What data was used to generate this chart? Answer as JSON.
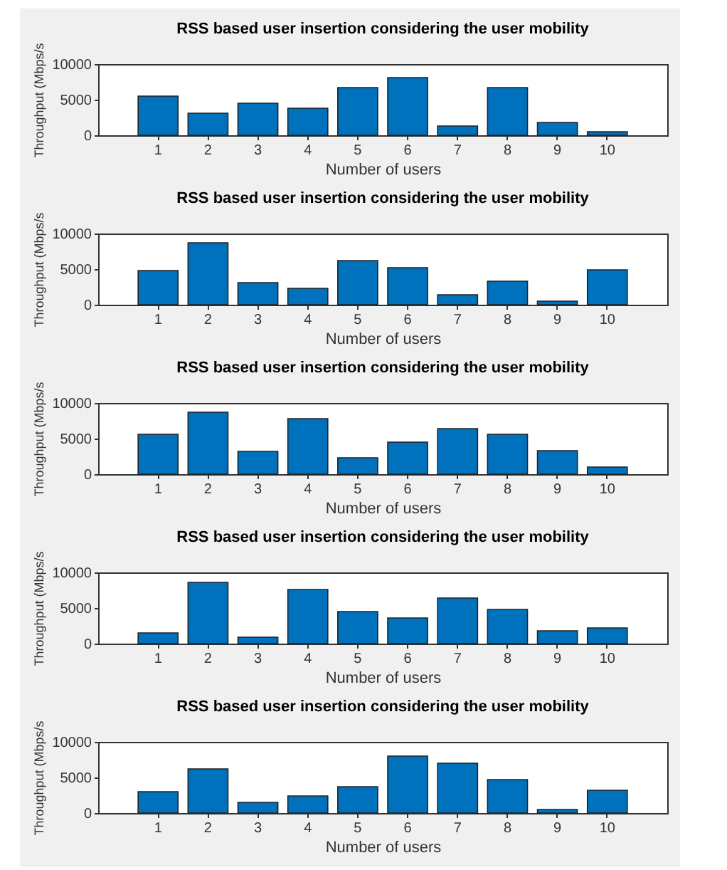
{
  "chart_data": [
    {
      "type": "bar",
      "title": "RSS based user insertion considering the user mobility",
      "xlabel": "Number of users",
      "ylabel": "Throughput (Mbps/s",
      "categories": [
        "1",
        "2",
        "3",
        "4",
        "5",
        "6",
        "7",
        "8",
        "9",
        "10"
      ],
      "values": [
        5500,
        3100,
        4500,
        3800,
        6700,
        8100,
        1300,
        6700,
        1800,
        500
      ],
      "color": "#0072bd",
      "ylim": [
        0,
        10000
      ],
      "yticks": [
        0,
        5000,
        10000
      ],
      "grid": false
    },
    {
      "type": "bar",
      "title": "RSS based user insertion considering the user mobility",
      "xlabel": "Number of users",
      "ylabel": "Throughput (Mbps/s",
      "categories": [
        "1",
        "2",
        "3",
        "4",
        "5",
        "6",
        "7",
        "8",
        "9",
        "10"
      ],
      "values": [
        4800,
        8700,
        3100,
        2300,
        6200,
        5200,
        1400,
        3300,
        500,
        4900
      ],
      "color": "#0072bd",
      "ylim": [
        0,
        10000
      ],
      "yticks": [
        0,
        5000,
        10000
      ],
      "grid": false
    },
    {
      "type": "bar",
      "title": "RSS based user insertion considering the user mobility",
      "xlabel": "Number of users",
      "ylabel": "Throughput (Mbps/s",
      "categories": [
        "1",
        "2",
        "3",
        "4",
        "5",
        "6",
        "7",
        "8",
        "9",
        "10"
      ],
      "values": [
        5600,
        8700,
        3200,
        7800,
        2300,
        4500,
        6400,
        5600,
        3300,
        1000
      ],
      "color": "#0072bd",
      "ylim": [
        0,
        10000
      ],
      "yticks": [
        0,
        5000,
        10000
      ],
      "grid": false
    },
    {
      "type": "bar",
      "title": "RSS based user insertion considering the user mobility",
      "xlabel": "Number of users",
      "ylabel": "Throughput (Mbps/s",
      "categories": [
        "1",
        "2",
        "3",
        "4",
        "5",
        "6",
        "7",
        "8",
        "9",
        "10"
      ],
      "values": [
        1500,
        8600,
        900,
        7600,
        4500,
        3600,
        6400,
        4800,
        1800,
        2200
      ],
      "color": "#0072bd",
      "ylim": [
        0,
        10000
      ],
      "yticks": [
        0,
        5000,
        10000
      ],
      "grid": false
    },
    {
      "type": "bar",
      "title": "RSS based user insertion considering the user mobility",
      "xlabel": "Number of users",
      "ylabel": "Throughput (Mbps/s",
      "categories": [
        "1",
        "2",
        "3",
        "4",
        "5",
        "6",
        "7",
        "8",
        "9",
        "10"
      ],
      "values": [
        3000,
        6200,
        1500,
        2400,
        3700,
        8000,
        7000,
        4700,
        500,
        3200
      ],
      "color": "#0072bd",
      "ylim": [
        0,
        10000
      ],
      "yticks": [
        0,
        5000,
        10000
      ],
      "grid": false
    }
  ]
}
